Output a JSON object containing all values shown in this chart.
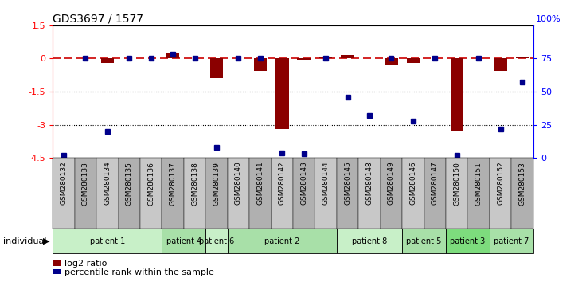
{
  "title": "GDS3697 / 1577",
  "samples": [
    "GSM280132",
    "GSM280133",
    "GSM280134",
    "GSM280135",
    "GSM280136",
    "GSM280137",
    "GSM280138",
    "GSM280139",
    "GSM280140",
    "GSM280141",
    "GSM280142",
    "GSM280143",
    "GSM280144",
    "GSM280145",
    "GSM280148",
    "GSM280149",
    "GSM280146",
    "GSM280147",
    "GSM280150",
    "GSM280151",
    "GSM280152",
    "GSM280153"
  ],
  "log2_ratio": [
    0.0,
    0.0,
    -0.2,
    0.0,
    0.0,
    0.25,
    0.0,
    -0.9,
    0.0,
    -0.55,
    -3.2,
    -0.05,
    0.1,
    0.15,
    0.0,
    -0.3,
    -0.2,
    0.0,
    -3.3,
    0.0,
    -0.55,
    0.05
  ],
  "percentile_rank": [
    2,
    75,
    20,
    75,
    75,
    78,
    75,
    8,
    75,
    75,
    4,
    3,
    75,
    46,
    32,
    75,
    28,
    75,
    2,
    75,
    22,
    57
  ],
  "patients": [
    {
      "label": "patient 1",
      "start": 0,
      "end": 5
    },
    {
      "label": "patient 4",
      "start": 5,
      "end": 7
    },
    {
      "label": "patient 6",
      "start": 7,
      "end": 8
    },
    {
      "label": "patient 2",
      "start": 8,
      "end": 13
    },
    {
      "label": "patient 8",
      "start": 13,
      "end": 16
    },
    {
      "label": "patient 5",
      "start": 16,
      "end": 18
    },
    {
      "label": "patient 3",
      "start": 18,
      "end": 20
    },
    {
      "label": "patient 7",
      "start": 20,
      "end": 22
    }
  ],
  "patient_colors": [
    "#c8f0c8",
    "#a8e0a8",
    "#c8f0c8",
    "#a8e0a8",
    "#c8f0c8",
    "#a8e0a8",
    "#7ddc7d",
    "#a8e0a8"
  ],
  "ylim_left": [
    -4.5,
    1.5
  ],
  "ylim_right": [
    0,
    100
  ],
  "yticks_left": [
    1.5,
    0,
    -1.5,
    -3,
    -4.5
  ],
  "yticks_right": [
    0,
    25,
    50,
    75
  ],
  "bar_color": "#8B0000",
  "dot_color": "#00008B",
  "ref_line_color": "#CC0000",
  "grid_line_color": "#000000",
  "bg_color": "#ffffff",
  "sample_box_colors": [
    "#c8c8c8",
    "#b0b0b0"
  ]
}
